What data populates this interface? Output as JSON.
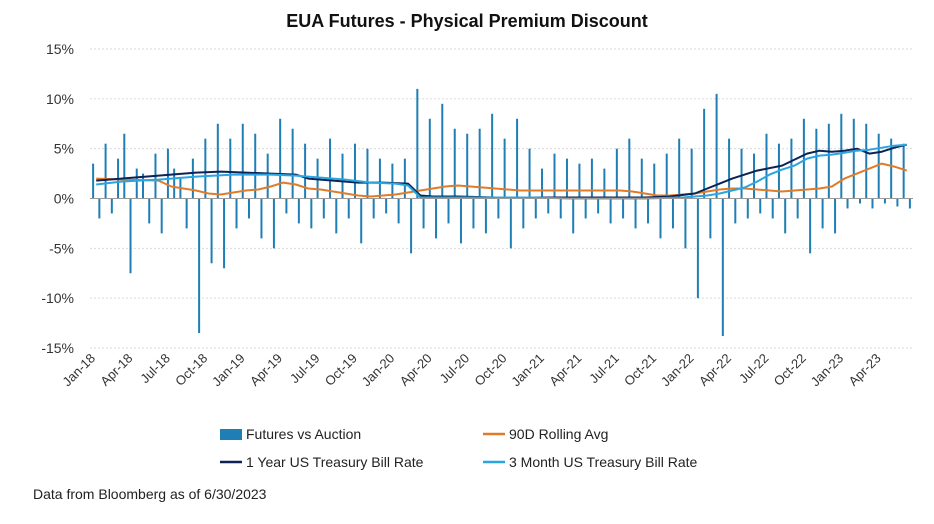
{
  "chart_data": {
    "type": "bar",
    "title": "EUA Futures - Physical Premium Discount",
    "y_unit": "%",
    "ylim": [
      -15,
      15
    ],
    "yticks": [
      "15%",
      "10%",
      "5%",
      "0%",
      "-5%",
      "-10%",
      "-15%"
    ],
    "yticks_values": [
      15,
      10,
      5,
      0,
      -5,
      -10,
      -15
    ],
    "x_start": "2018-01",
    "x_end": "2023-06",
    "xticks": [
      "Jan-18",
      "Apr-18",
      "Jul-18",
      "Oct-18",
      "Jan-19",
      "Apr-19",
      "Jul-19",
      "Oct-19",
      "Jan-20",
      "Apr-20",
      "Jul-20",
      "Oct-20",
      "Jan-21",
      "Apr-21",
      "Jul-21",
      "Oct-21",
      "Jan-22",
      "Apr-22",
      "Jul-22",
      "Oct-22",
      "Jan-23",
      "Apr-23"
    ],
    "grid": true,
    "legend_position": "bottom",
    "series": [
      {
        "name": "Futures vs Auction",
        "kind": "bar",
        "color": "#1f7fb5",
        "points": [
          [
            "2018-01",
            3.5
          ],
          [
            "2018-01",
            -2.0
          ],
          [
            "2018-02",
            5.5
          ],
          [
            "2018-02",
            -1.5
          ],
          [
            "2018-03",
            4.0
          ],
          [
            "2018-03",
            6.5
          ],
          [
            "2018-04",
            -7.5
          ],
          [
            "2018-04",
            3.0
          ],
          [
            "2018-05",
            2.5
          ],
          [
            "2018-05",
            -2.5
          ],
          [
            "2018-06",
            4.5
          ],
          [
            "2018-06",
            -3.5
          ],
          [
            "2018-07",
            5.0
          ],
          [
            "2018-07",
            3.0
          ],
          [
            "2018-08",
            2.0
          ],
          [
            "2018-08",
            -3.0
          ],
          [
            "2018-09",
            4.0
          ],
          [
            "2018-09",
            -13.5
          ],
          [
            "2018-10",
            6.0
          ],
          [
            "2018-10",
            -6.5
          ],
          [
            "2018-11",
            7.5
          ],
          [
            "2018-11",
            -7.0
          ],
          [
            "2018-12",
            6.0
          ],
          [
            "2018-12",
            -3.0
          ],
          [
            "2019-01",
            7.5
          ],
          [
            "2019-01",
            -2.0
          ],
          [
            "2019-02",
            6.5
          ],
          [
            "2019-02",
            -4.0
          ],
          [
            "2019-03",
            4.5
          ],
          [
            "2019-03",
            -5.0
          ],
          [
            "2019-04",
            8.0
          ],
          [
            "2019-04",
            -1.5
          ],
          [
            "2019-05",
            7.0
          ],
          [
            "2019-05",
            -2.5
          ],
          [
            "2019-06",
            5.5
          ],
          [
            "2019-06",
            -3.0
          ],
          [
            "2019-07",
            4.0
          ],
          [
            "2019-07",
            -2.0
          ],
          [
            "2019-08",
            6.0
          ],
          [
            "2019-08",
            -3.5
          ],
          [
            "2019-09",
            4.5
          ],
          [
            "2019-09",
            -2.0
          ],
          [
            "2019-10",
            5.5
          ],
          [
            "2019-10",
            -4.5
          ],
          [
            "2019-11",
            5.0
          ],
          [
            "2019-11",
            -2.0
          ],
          [
            "2019-12",
            4.0
          ],
          [
            "2019-12",
            -1.5
          ],
          [
            "2020-01",
            3.5
          ],
          [
            "2020-01",
            -2.5
          ],
          [
            "2020-02",
            4.0
          ],
          [
            "2020-02",
            -5.5
          ],
          [
            "2020-03",
            11.0
          ],
          [
            "2020-03",
            -3.0
          ],
          [
            "2020-04",
            8.0
          ],
          [
            "2020-04",
            -4.0
          ],
          [
            "2020-05",
            9.5
          ],
          [
            "2020-05",
            -2.5
          ],
          [
            "2020-06",
            7.0
          ],
          [
            "2020-06",
            -4.5
          ],
          [
            "2020-07",
            6.5
          ],
          [
            "2020-07",
            -3.0
          ],
          [
            "2020-08",
            7.0
          ],
          [
            "2020-08",
            -3.5
          ],
          [
            "2020-09",
            8.5
          ],
          [
            "2020-09",
            -2.0
          ],
          [
            "2020-10",
            6.0
          ],
          [
            "2020-10",
            -5.0
          ],
          [
            "2020-11",
            8.0
          ],
          [
            "2020-11",
            -3.0
          ],
          [
            "2020-12",
            5.0
          ],
          [
            "2020-12",
            -2.0
          ],
          [
            "2021-01",
            3.0
          ],
          [
            "2021-01",
            -1.5
          ],
          [
            "2021-02",
            4.5
          ],
          [
            "2021-02",
            -2.0
          ],
          [
            "2021-03",
            4.0
          ],
          [
            "2021-03",
            -3.5
          ],
          [
            "2021-04",
            3.5
          ],
          [
            "2021-04",
            -2.0
          ],
          [
            "2021-05",
            4.0
          ],
          [
            "2021-05",
            -1.5
          ],
          [
            "2021-06",
            3.0
          ],
          [
            "2021-06",
            -2.5
          ],
          [
            "2021-07",
            5.0
          ],
          [
            "2021-07",
            -2.0
          ],
          [
            "2021-08",
            6.0
          ],
          [
            "2021-08",
            -3.0
          ],
          [
            "2021-09",
            4.0
          ],
          [
            "2021-09",
            -2.5
          ],
          [
            "2021-10",
            3.5
          ],
          [
            "2021-10",
            -4.0
          ],
          [
            "2021-11",
            4.5
          ],
          [
            "2021-11",
            -3.0
          ],
          [
            "2021-12",
            6.0
          ],
          [
            "2021-12",
            -5.0
          ],
          [
            "2022-01",
            5.0
          ],
          [
            "2022-01",
            -10.0
          ],
          [
            "2022-02",
            9.0
          ],
          [
            "2022-02",
            -4.0
          ],
          [
            "2022-03",
            10.5
          ],
          [
            "2022-03",
            -13.8
          ],
          [
            "2022-04",
            6.0
          ],
          [
            "2022-04",
            -2.5
          ],
          [
            "2022-05",
            5.0
          ],
          [
            "2022-05",
            -2.0
          ],
          [
            "2022-06",
            4.5
          ],
          [
            "2022-06",
            -1.5
          ],
          [
            "2022-07",
            6.5
          ],
          [
            "2022-07",
            -2.0
          ],
          [
            "2022-08",
            5.5
          ],
          [
            "2022-08",
            -3.5
          ],
          [
            "2022-09",
            6.0
          ],
          [
            "2022-09",
            -2.0
          ],
          [
            "2022-10",
            8.0
          ],
          [
            "2022-10",
            -5.5
          ],
          [
            "2022-11",
            7.0
          ],
          [
            "2022-11",
            -3.0
          ],
          [
            "2022-12",
            7.5
          ],
          [
            "2022-12",
            -3.5
          ],
          [
            "2023-01",
            8.5
          ],
          [
            "2023-01",
            -1.0
          ],
          [
            "2023-02",
            8.0
          ],
          [
            "2023-02",
            -0.5
          ],
          [
            "2023-03",
            7.5
          ],
          [
            "2023-03",
            -1.0
          ],
          [
            "2023-04",
            6.5
          ],
          [
            "2023-04",
            -0.5
          ],
          [
            "2023-05",
            6.0
          ],
          [
            "2023-05",
            -0.8
          ],
          [
            "2023-06",
            5.5
          ],
          [
            "2023-06",
            -1.0
          ]
        ]
      },
      {
        "name": "90D Rolling Avg",
        "kind": "line",
        "color": "#e07b2a",
        "points": [
          [
            "2018-01",
            2.0
          ],
          [
            "2018-06",
            1.8
          ],
          [
            "2018-07",
            1.2
          ],
          [
            "2018-08",
            1.0
          ],
          [
            "2018-09",
            0.8
          ],
          [
            "2018-10",
            0.5
          ],
          [
            "2018-11",
            0.4
          ],
          [
            "2018-12",
            0.6
          ],
          [
            "2019-01",
            0.8
          ],
          [
            "2019-02",
            0.9
          ],
          [
            "2019-03",
            1.2
          ],
          [
            "2019-04",
            1.6
          ],
          [
            "2019-05",
            1.4
          ],
          [
            "2019-06",
            1.0
          ],
          [
            "2019-07",
            0.9
          ],
          [
            "2019-08",
            0.7
          ],
          [
            "2019-09",
            0.5
          ],
          [
            "2019-10",
            0.3
          ],
          [
            "2019-11",
            0.2
          ],
          [
            "2019-12",
            0.3
          ],
          [
            "2020-01",
            0.4
          ],
          [
            "2020-02",
            0.6
          ],
          [
            "2020-03",
            0.8
          ],
          [
            "2020-04",
            1.0
          ],
          [
            "2020-05",
            1.2
          ],
          [
            "2020-06",
            1.3
          ],
          [
            "2020-07",
            1.2
          ],
          [
            "2020-08",
            1.1
          ],
          [
            "2020-09",
            1.0
          ],
          [
            "2020-10",
            0.9
          ],
          [
            "2020-11",
            0.8
          ],
          [
            "2020-12",
            0.8
          ],
          [
            "2021-01",
            0.8
          ],
          [
            "2021-04",
            0.8
          ],
          [
            "2021-07",
            0.8
          ],
          [
            "2021-08",
            0.7
          ],
          [
            "2021-09",
            0.5
          ],
          [
            "2021-10",
            0.3
          ],
          [
            "2021-11",
            0.3
          ],
          [
            "2021-12",
            0.4
          ],
          [
            "2022-01",
            0.5
          ],
          [
            "2022-02",
            0.7
          ],
          [
            "2022-03",
            0.9
          ],
          [
            "2022-04",
            1.0
          ],
          [
            "2022-05",
            1.0
          ],
          [
            "2022-06",
            0.9
          ],
          [
            "2022-07",
            0.8
          ],
          [
            "2022-08",
            0.7
          ],
          [
            "2022-09",
            0.8
          ],
          [
            "2022-10",
            0.9
          ],
          [
            "2022-11",
            1.0
          ],
          [
            "2022-12",
            1.2
          ],
          [
            "2023-01",
            2.0
          ],
          [
            "2023-02",
            2.5
          ],
          [
            "2023-03",
            3.0
          ],
          [
            "2023-04",
            3.5
          ],
          [
            "2023-05",
            3.2
          ],
          [
            "2023-06",
            2.8
          ]
        ]
      },
      {
        "name": "1 Year US Treasury Bill Rate",
        "kind": "line",
        "color": "#0d2355",
        "points": [
          [
            "2018-01",
            1.8
          ],
          [
            "2018-03",
            2.0
          ],
          [
            "2018-06",
            2.3
          ],
          [
            "2018-09",
            2.6
          ],
          [
            "2018-11",
            2.7
          ],
          [
            "2019-01",
            2.6
          ],
          [
            "2019-03",
            2.5
          ],
          [
            "2019-05",
            2.4
          ],
          [
            "2019-06",
            2.0
          ],
          [
            "2019-08",
            1.8
          ],
          [
            "2019-10",
            1.6
          ],
          [
            "2019-12",
            1.6
          ],
          [
            "2020-02",
            1.5
          ],
          [
            "2020-03",
            0.3
          ],
          [
            "2020-04",
            0.2
          ],
          [
            "2020-06",
            0.2
          ],
          [
            "2020-09",
            0.1
          ],
          [
            "2020-12",
            0.1
          ],
          [
            "2021-03",
            0.1
          ],
          [
            "2021-06",
            0.1
          ],
          [
            "2021-09",
            0.1
          ],
          [
            "2021-11",
            0.2
          ],
          [
            "2022-01",
            0.5
          ],
          [
            "2022-02",
            1.0
          ],
          [
            "2022-03",
            1.5
          ],
          [
            "2022-04",
            2.0
          ],
          [
            "2022-06",
            2.8
          ],
          [
            "2022-08",
            3.3
          ],
          [
            "2022-09",
            3.9
          ],
          [
            "2022-10",
            4.5
          ],
          [
            "2022-11",
            4.8
          ],
          [
            "2022-12",
            4.7
          ],
          [
            "2023-01",
            4.8
          ],
          [
            "2023-02",
            5.0
          ],
          [
            "2023-03",
            4.5
          ],
          [
            "2023-04",
            4.7
          ],
          [
            "2023-05",
            5.1
          ],
          [
            "2023-06",
            5.4
          ]
        ]
      },
      {
        "name": "3 Month US Treasury Bill Rate",
        "kind": "line",
        "color": "#29a6e0",
        "points": [
          [
            "2018-01",
            1.4
          ],
          [
            "2018-03",
            1.7
          ],
          [
            "2018-06",
            1.9
          ],
          [
            "2018-09",
            2.2
          ],
          [
            "2018-12",
            2.4
          ],
          [
            "2019-03",
            2.4
          ],
          [
            "2019-05",
            2.3
          ],
          [
            "2019-07",
            2.1
          ],
          [
            "2019-09",
            1.9
          ],
          [
            "2019-11",
            1.6
          ],
          [
            "2020-01",
            1.5
          ],
          [
            "2020-02",
            1.3
          ],
          [
            "2020-03",
            0.1
          ],
          [
            "2020-06",
            0.1
          ],
          [
            "2020-09",
            0.1
          ],
          [
            "2020-12",
            0.1
          ],
          [
            "2021-03",
            0.0
          ],
          [
            "2021-06",
            0.0
          ],
          [
            "2021-09",
            0.0
          ],
          [
            "2021-12",
            0.1
          ],
          [
            "2022-02",
            0.3
          ],
          [
            "2022-03",
            0.5
          ],
          [
            "2022-05",
            1.1
          ],
          [
            "2022-06",
            1.7
          ],
          [
            "2022-07",
            2.4
          ],
          [
            "2022-08",
            2.9
          ],
          [
            "2022-09",
            3.3
          ],
          [
            "2022-10",
            4.0
          ],
          [
            "2022-11",
            4.3
          ],
          [
            "2022-12",
            4.4
          ],
          [
            "2023-01",
            4.6
          ],
          [
            "2023-02",
            4.8
          ],
          [
            "2023-03",
            4.9
          ],
          [
            "2023-04",
            5.1
          ],
          [
            "2023-05",
            5.3
          ],
          [
            "2023-06",
            5.4
          ]
        ]
      }
    ],
    "source_note": "Data from Bloomberg as of 6/30/2023"
  }
}
